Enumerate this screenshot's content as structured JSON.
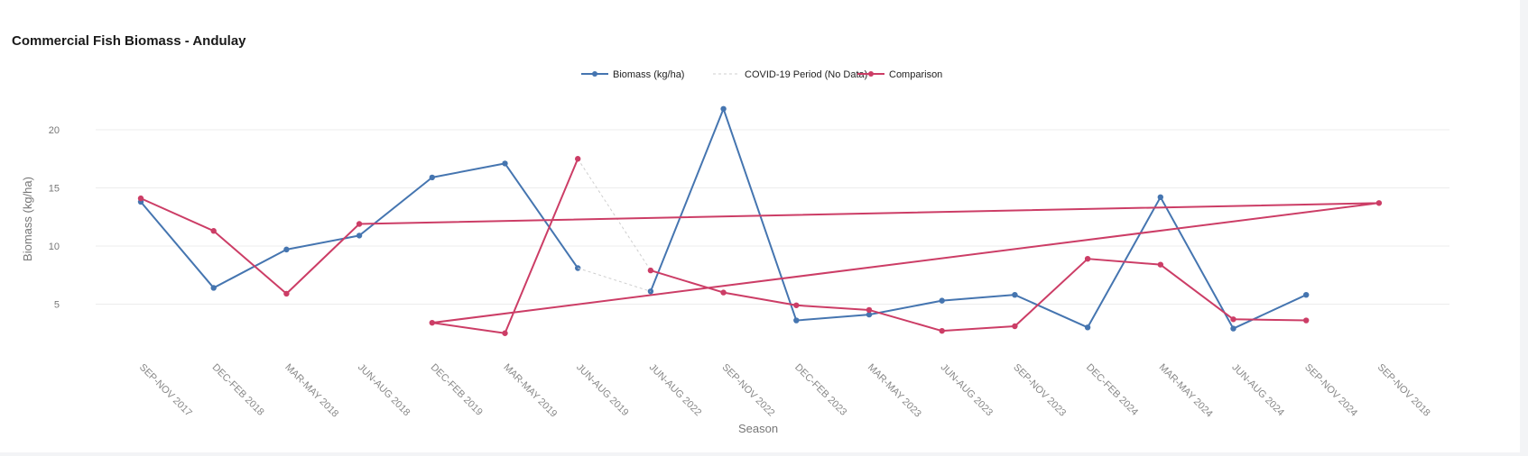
{
  "chart_data": {
    "type": "line",
    "title": "Commercial Fish Biomass - Andulay",
    "xlabel": "Season",
    "ylabel": "Biomass (kg/ha)",
    "categories": [
      "SEP-NOV 2017",
      "DEC-FEB 2018",
      "MAR-MAY 2018",
      "JUN-AUG 2018",
      "DEC-FEB 2019",
      "MAR-MAY 2019",
      "JUN-AUG 2019",
      "JUN-AUG 2022",
      "SEP-NOV 2022",
      "DEC-FEB 2023",
      "MAR-MAY 2023",
      "JUN-AUG 2023",
      "SEP-NOV 2023",
      "DEC-FEB 2024",
      "MAR-MAY 2024",
      "JUN-AUG 2024",
      "SEP-NOV 2024",
      "SEP-NOV 2018"
    ],
    "ylim": [
      0,
      24
    ],
    "yticks": [
      5,
      10,
      15,
      20
    ],
    "grid": true,
    "legend_position": "top-center",
    "series": [
      {
        "name": "Biomass (kg/ha)",
        "color": "#4575b0",
        "style": "solid",
        "points": [
          [
            "SEP-NOV 2017",
            13.8
          ],
          [
            "DEC-FEB 2018",
            6.4
          ],
          [
            "MAR-MAY 2018",
            9.7
          ],
          [
            "JUN-AUG 2018",
            10.9
          ],
          [
            "DEC-FEB 2019",
            15.9
          ],
          [
            "MAR-MAY 2019",
            17.1
          ],
          [
            "JUN-AUG 2019",
            8.1
          ],
          null,
          [
            "JUN-AUG 2022",
            6.1
          ],
          [
            "SEP-NOV 2022",
            21.8
          ],
          [
            "DEC-FEB 2023",
            3.6
          ],
          [
            "MAR-MAY 2023",
            4.1
          ],
          [
            "JUN-AUG 2023",
            5.3
          ],
          [
            "SEP-NOV 2023",
            5.8
          ],
          [
            "DEC-FEB 2024",
            3.0
          ],
          [
            "MAR-MAY 2024",
            14.2
          ],
          [
            "JUN-AUG 2024",
            2.9
          ],
          [
            "SEP-NOV 2024",
            5.8
          ]
        ]
      },
      {
        "name": "COVID-19 Period (No Data)",
        "color": "#cfcfcf",
        "style": "dotted",
        "segments": [
          [
            [
              "JUN-AUG 2019",
              8.1
            ],
            [
              "JUN-AUG 2022",
              6.1
            ]
          ],
          [
            [
              "JUN-AUG 2019",
              17.5
            ],
            [
              "JUN-AUG 2022",
              7.9
            ]
          ]
        ]
      },
      {
        "name": "Comparison",
        "color": "#cc3d66",
        "style": "solid",
        "points": [
          [
            "SEP-NOV 2017",
            14.1
          ],
          [
            "DEC-FEB 2018",
            11.3
          ],
          [
            "MAR-MAY 2018",
            5.9
          ],
          [
            "JUN-AUG 2018",
            11.9
          ],
          [
            "SEP-NOV 2018",
            13.7
          ],
          [
            "DEC-FEB 2019",
            3.4
          ],
          [
            "MAR-MAY 2019",
            2.5
          ],
          [
            "JUN-AUG 2019",
            17.5
          ],
          null,
          [
            "JUN-AUG 2022",
            7.9
          ],
          [
            "SEP-NOV 2022",
            6.0
          ],
          [
            "DEC-FEB 2023",
            4.9
          ],
          [
            "MAR-MAY 2023",
            4.5
          ],
          [
            "JUN-AUG 2023",
            2.7
          ],
          [
            "SEP-NOV 2023",
            3.1
          ],
          [
            "DEC-FEB 2024",
            8.9
          ],
          [
            "MAR-MAY 2024",
            8.4
          ],
          [
            "JUN-AUG 2024",
            3.7
          ],
          [
            "SEP-NOV 2024",
            3.6
          ]
        ]
      }
    ]
  }
}
